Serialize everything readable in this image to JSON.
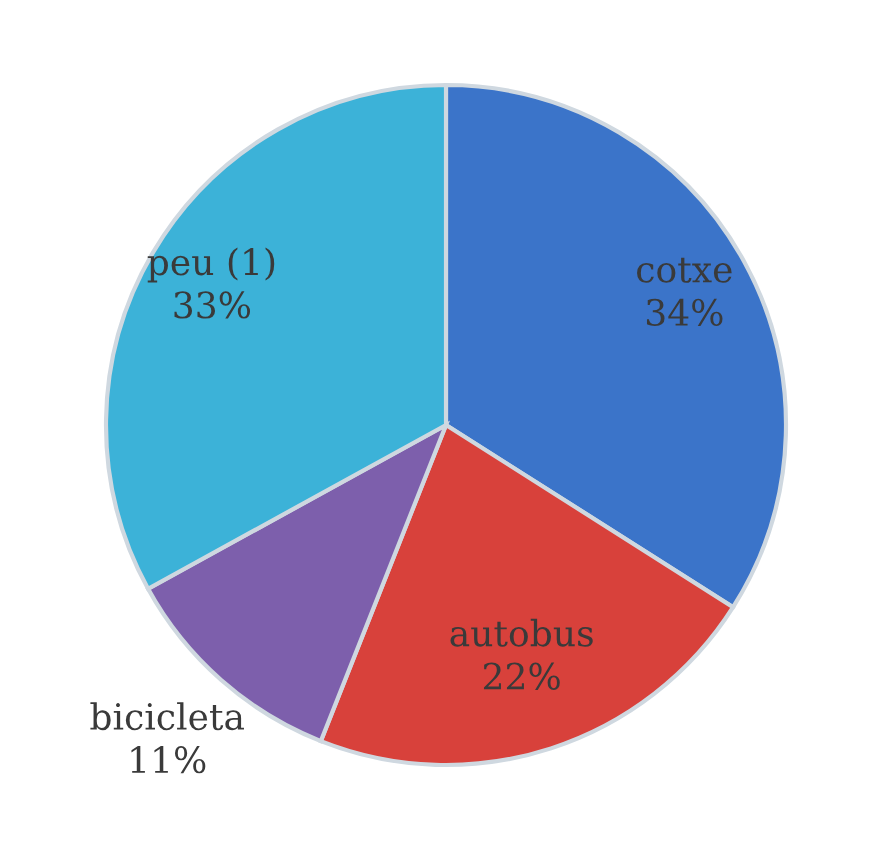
{
  "chart_data": {
    "type": "pie",
    "categories": [
      "cotxe",
      "autobus",
      "bicicleta",
      "peu (1)"
    ],
    "values": [
      34,
      22,
      11,
      33
    ],
    "value_labels": [
      "34%",
      "22%",
      "11%",
      "33%"
    ],
    "colors": [
      "#3b74c9",
      "#d8413b",
      "#7d5fac",
      "#3cb2d8"
    ]
  }
}
